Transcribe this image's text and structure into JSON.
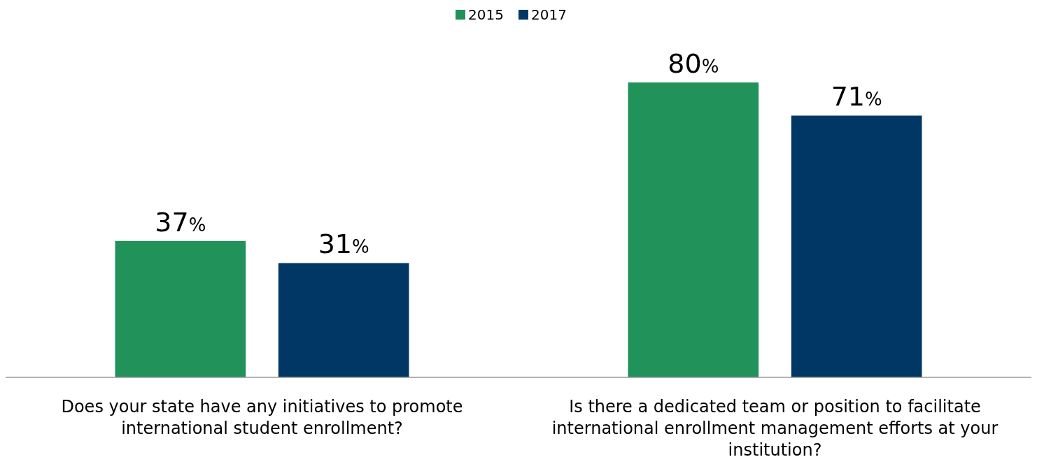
{
  "chart_data": {
    "type": "bar",
    "categories": [
      "Does your state have any initiatives to promote international student enrollment?",
      "Is there a dedicated team or position to facilitate international enrollment management efforts at your institution?"
    ],
    "series": [
      {
        "name": "2015",
        "color": "#21925a",
        "values": [
          37,
          80
        ],
        "value_labels": [
          "37%",
          "80%"
        ]
      },
      {
        "name": "2017",
        "color": "#003764",
        "values": [
          31,
          71
        ],
        "value_labels": [
          "31%",
          "71%"
        ]
      }
    ],
    "legend": "top"
  }
}
